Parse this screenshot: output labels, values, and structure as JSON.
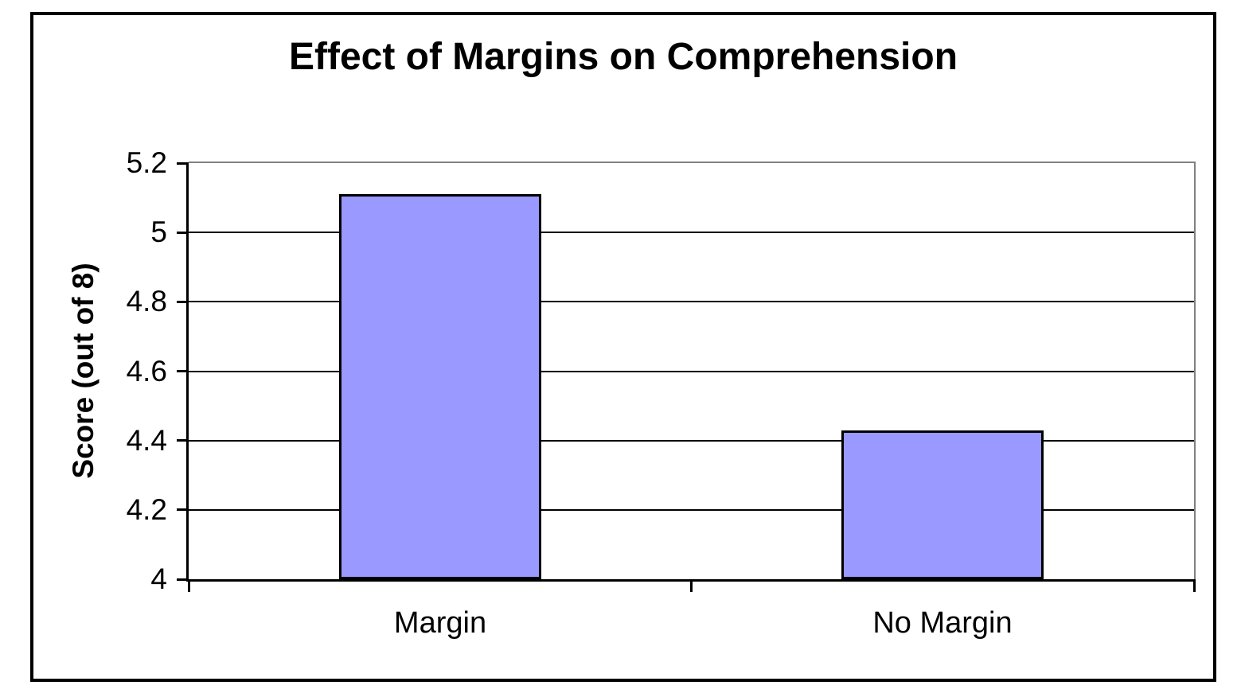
{
  "chart_data": {
    "type": "bar",
    "title": "Effect of Margins on Comprehension",
    "ylabel": "Score (out of 8)",
    "xlabel": "",
    "categories": [
      "Margin",
      "No Margin"
    ],
    "values": [
      5.11,
      4.43
    ],
    "ylim": [
      4,
      5.2
    ],
    "yticks": [
      4,
      4.2,
      4.4,
      4.6,
      4.8,
      5,
      5.2
    ],
    "ytick_labels": [
      "4",
      "4.2",
      "4.4",
      "4.6",
      "4.8",
      "5",
      "5.2"
    ],
    "grid": true,
    "legend": false,
    "legend_position": "none",
    "colors": {
      "bar_fill": "#9999ff",
      "bar_border": "#000000",
      "gridline": "#000000",
      "axis": "#000000",
      "plot_border": "#808080",
      "frame_border": "#000000",
      "background": "#ffffff",
      "text": "#000000"
    }
  }
}
